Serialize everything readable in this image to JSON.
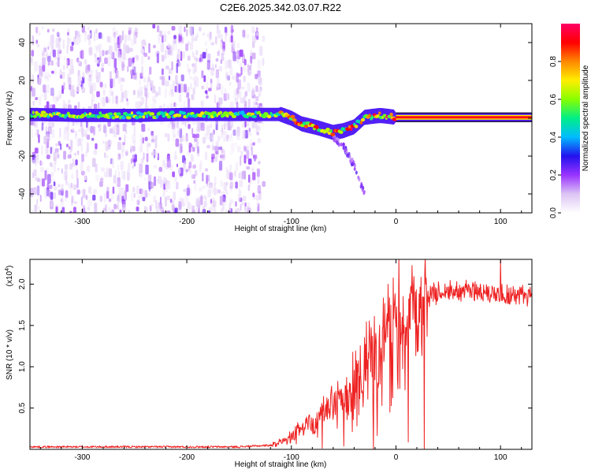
{
  "figure_title": "C2E6.2025.342.03.07.R22",
  "chart_data": [
    {
      "type": "heatmap",
      "title": "C2E6.2025.342.03.07.R22",
      "xlabel": "Height of straight line (km)",
      "ylabel": "Frequency (Hz)",
      "xlim": [
        -350,
        130
      ],
      "ylim": [
        -50,
        50
      ],
      "x_ticks": [
        -300,
        -200,
        -100,
        0,
        100
      ],
      "y_ticks": [
        -40,
        -20,
        0,
        20,
        40
      ],
      "x_tick_labels": [
        "-300",
        "-200",
        "-100",
        "0",
        "100"
      ],
      "y_tick_labels": [
        "-40",
        "-20",
        "0",
        "20",
        "40"
      ],
      "ridge": {
        "description": "dominant frequency line vs height",
        "points": [
          [
            -350,
            2.0
          ],
          [
            -300,
            1.5
          ],
          [
            -250,
            1.5
          ],
          [
            -200,
            2.0
          ],
          [
            -150,
            2.0
          ],
          [
            -110,
            2.0
          ],
          [
            -100,
            0.0
          ],
          [
            -90,
            -3.0
          ],
          [
            -75,
            -5.0
          ],
          [
            -60,
            -7.5
          ],
          [
            -50,
            -6.5
          ],
          [
            -40,
            -4.5
          ],
          [
            -30,
            0.5
          ],
          [
            -15,
            1.5
          ],
          [
            0,
            0.5
          ],
          [
            50,
            0.5
          ],
          [
            130,
            0.5
          ]
        ]
      },
      "faint_branch": [
        [
          -60,
          -10
        ],
        [
          -50,
          -15
        ],
        [
          -40,
          -25
        ],
        [
          -30,
          -40
        ]
      ],
      "colorbar": {
        "label": "Normalized spectral amplitude",
        "range": [
          0.0,
          1.0
        ],
        "ticks": [
          0.0,
          0.2,
          0.4,
          0.6,
          0.8
        ],
        "tick_labels": [
          "0.0",
          "0.2",
          "0.4",
          "0.6",
          "0.8"
        ],
        "colors": [
          "#ffffff",
          "#dcc4f4",
          "#9933ff",
          "#2211ee",
          "#00bbff",
          "#00ee88",
          "#88ff00",
          "#ffee00",
          "#ff8800",
          "#ff0000",
          "#ff0066"
        ]
      }
    },
    {
      "type": "line",
      "xlabel": "Height of straight line (km)",
      "ylabel": "SNR (10 * v/v)",
      "y_multiplier_label": "(x10",
      "y_multiplier_exponent": "4",
      "y_multiplier_suffix": ")",
      "xlim": [
        -350,
        130
      ],
      "ylim": [
        0,
        2.3
      ],
      "x_ticks": [
        -300,
        -200,
        -100,
        0,
        100
      ],
      "y_ticks": [
        0.5,
        1.0,
        1.5,
        2.0
      ],
      "x_tick_labels": [
        "-300",
        "-200",
        "-100",
        "0",
        "100"
      ],
      "y_tick_labels": [
        "0.5",
        "1.0",
        "1.5",
        "2.0"
      ],
      "color": "#ee2222",
      "series": [
        {
          "name": "SNR",
          "envelope": [
            [
              -350,
              0.03
            ],
            [
              -250,
              0.03
            ],
            [
              -150,
              0.03
            ],
            [
              -120,
              0.05
            ],
            [
              -110,
              0.1
            ],
            [
              -100,
              0.17
            ],
            [
              -90,
              0.25
            ],
            [
              -80,
              0.35
            ],
            [
              -70,
              0.45
            ],
            [
              -60,
              0.55
            ],
            [
              -50,
              0.65
            ],
            [
              -40,
              0.85
            ],
            [
              -30,
              1.0
            ],
            [
              -20,
              1.2
            ],
            [
              -10,
              1.35
            ],
            [
              0,
              1.5
            ],
            [
              10,
              1.65
            ],
            [
              20,
              1.75
            ],
            [
              30,
              1.85
            ],
            [
              40,
              1.9
            ],
            [
              50,
              1.93
            ],
            [
              70,
              1.92
            ],
            [
              90,
              1.9
            ],
            [
              110,
              1.87
            ],
            [
              130,
              1.85
            ]
          ],
          "peak": [
            100,
            2.3
          ]
        }
      ]
    }
  ]
}
